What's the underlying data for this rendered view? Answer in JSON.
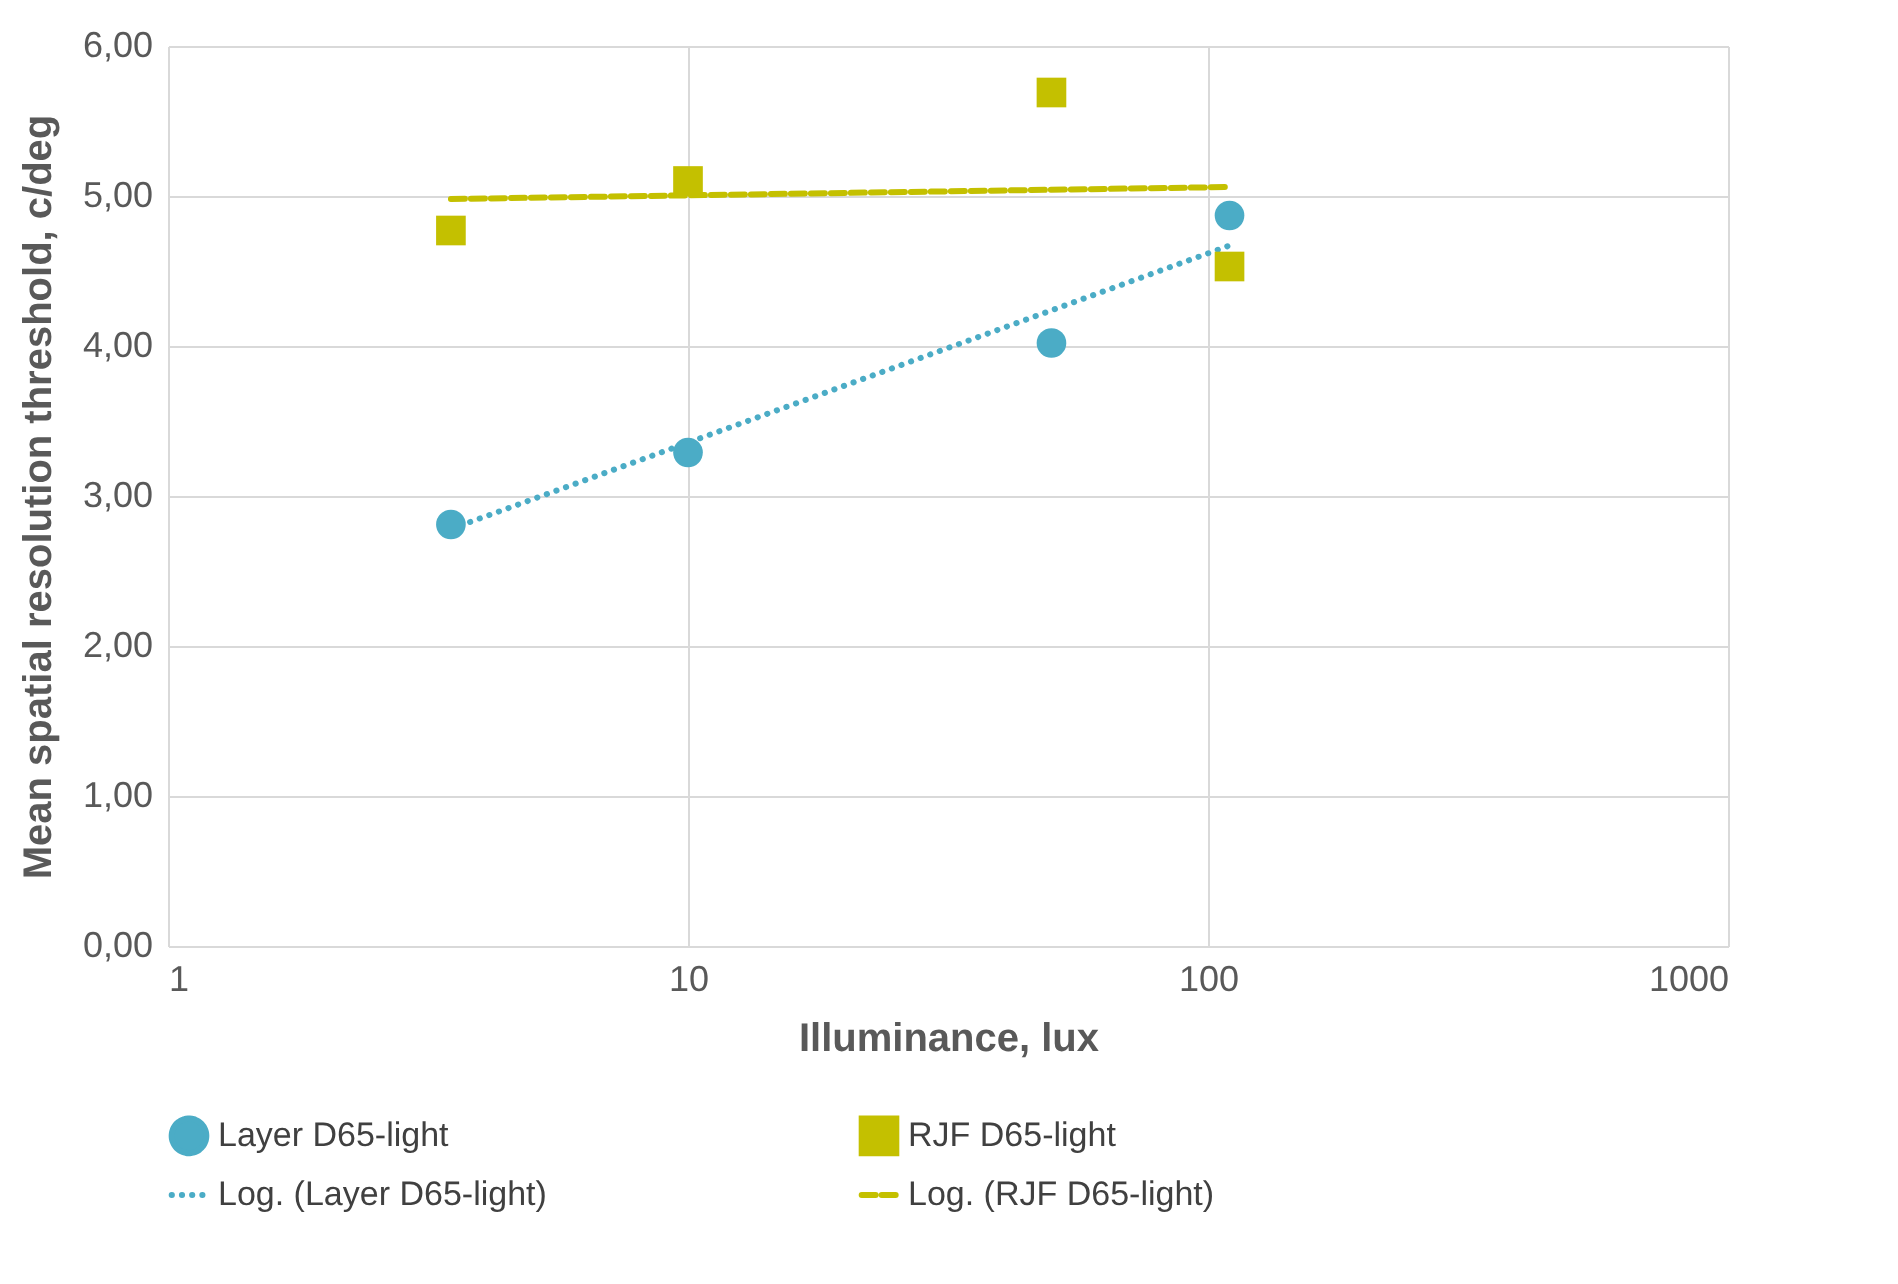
{
  "chart_data": {
    "type": "scatter",
    "xlabel": "Illuminance, lux",
    "ylabel": "Mean spatial resolution threshold, c/deg",
    "log": "x",
    "xlim": [
      1,
      1000
    ],
    "xticks": [
      1,
      10,
      100,
      1000
    ],
    "ylim": [
      0,
      6
    ],
    "yticks": [
      {
        "value": 0,
        "label": "0,00"
      },
      {
        "value": 1,
        "label": "1,00"
      },
      {
        "value": 2,
        "label": "2,00"
      },
      {
        "value": 3,
        "label": "3,00"
      },
      {
        "value": 4,
        "label": "4,00"
      },
      {
        "value": 5,
        "label": "5,00"
      },
      {
        "value": 6,
        "label": "6,00"
      }
    ],
    "grid": true,
    "legend": "bottom",
    "series": [
      {
        "name": "Layer D65-light",
        "type": "scatter",
        "marker": "circle",
        "color": "#4bacc6",
        "x": [
          3.5,
          10,
          50,
          110
        ],
        "values": [
          2.81,
          3.29,
          4.02,
          4.87
        ]
      },
      {
        "name": "RJF D65-light",
        "type": "scatter",
        "marker": "square",
        "color": "#c4c000",
        "x": [
          3.5,
          10,
          50,
          110
        ],
        "values": [
          4.77,
          5.1,
          5.69,
          4.53
        ]
      },
      {
        "name": "Log. (Layer D65-light)",
        "type": "line",
        "line_style": "dotted",
        "color": "#4bacc6",
        "x": [
          3.5,
          110
        ],
        "values": [
          2.78,
          4.67
        ]
      },
      {
        "name": "Log. (RJF D65-light)",
        "type": "line",
        "line_style": "dashed",
        "color": "#c4c000",
        "x": [
          3.5,
          110
        ],
        "values": [
          4.98,
          5.06
        ]
      }
    ]
  }
}
